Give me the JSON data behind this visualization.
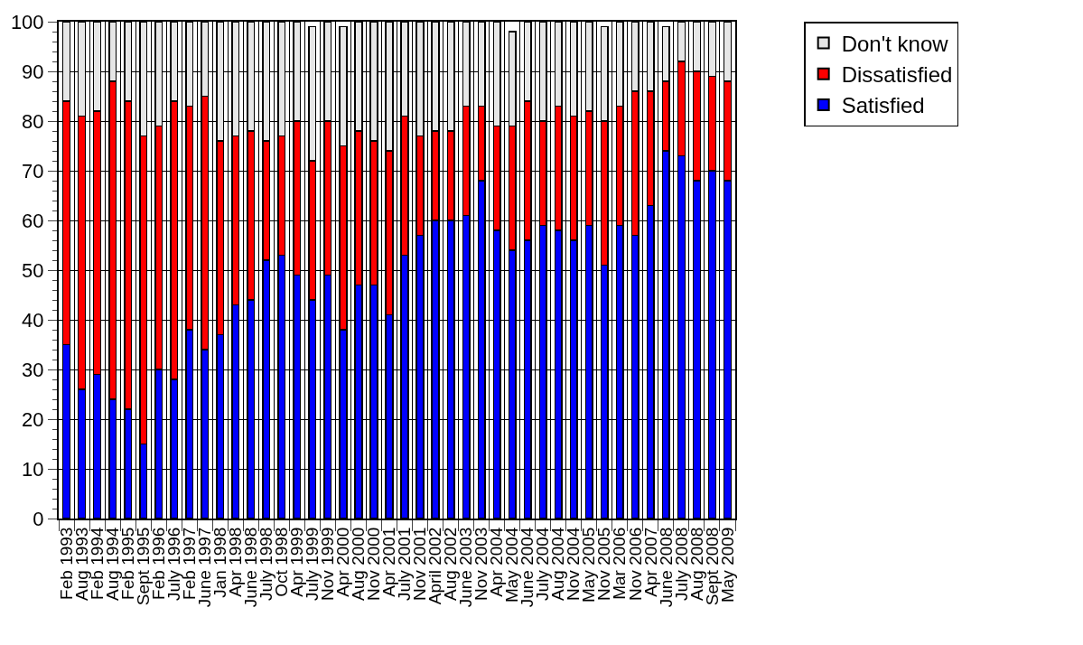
{
  "chart_data": {
    "type": "bar",
    "stacked": true,
    "categories": [
      "Feb 1993",
      "Aug 1993",
      "Feb 1994",
      "Aug 1994",
      "Feb 1995",
      "Sept 1995",
      "Feb 1996",
      "July 1996",
      "Feb 1997",
      "June 1997",
      "Jan 1998",
      "Apr 1998",
      "June 1998",
      "July 1998",
      "Oct 1998",
      "Apr 1999",
      "July 1999",
      "Nov 1999",
      "Apr 2000",
      "Aug 2000",
      "Nov 2000",
      "Apr 2001",
      "July 2001",
      "Nov 2001",
      "April 2002",
      "Aug 2002",
      "June 2003",
      "Nov 2003",
      "Apr 2004",
      "May 2004",
      "June 2004",
      "July 2004",
      "Aug 2004",
      "Nov 2004",
      "May 2005",
      "Nov 2005",
      "Mar 2006",
      "Nov 2006",
      "Apr 2007",
      "June 2008",
      "July 2008",
      "Aug 2008",
      "Sept 2008",
      "May 2009"
    ],
    "series": [
      {
        "name": "Satisfied",
        "color": "#0000ff",
        "values": [
          35,
          26,
          29,
          24,
          22,
          15,
          30,
          28,
          38,
          34,
          37,
          43,
          44,
          52,
          53,
          49,
          44,
          49,
          38,
          47,
          47,
          41,
          53,
          57,
          60,
          60,
          61,
          68,
          58,
          54,
          56,
          59,
          58,
          56,
          59,
          51,
          59,
          57,
          63,
          74,
          73,
          68,
          70,
          68
        ]
      },
      {
        "name": "Dissatisfied",
        "color": "#ff0000",
        "values": [
          49,
          55,
          53,
          64,
          62,
          62,
          49,
          56,
          45,
          51,
          39,
          34,
          34,
          24,
          24,
          31,
          28,
          31,
          37,
          31,
          29,
          33,
          28,
          20,
          18,
          18,
          22,
          15,
          21,
          25,
          28,
          21,
          25,
          25,
          23,
          29,
          24,
          29,
          23,
          14,
          19,
          22,
          19,
          20
        ]
      },
      {
        "name": "Don't know",
        "color": "#e6e6e6",
        "values": [
          16,
          19,
          18,
          12,
          16,
          23,
          21,
          16,
          17,
          15,
          24,
          23,
          22,
          24,
          23,
          20,
          27,
          20,
          24,
          22,
          24,
          26,
          19,
          23,
          22,
          22,
          17,
          17,
          21,
          19,
          16,
          20,
          17,
          19,
          18,
          19,
          17,
          14,
          14,
          11,
          8,
          10,
          11,
          12
        ]
      }
    ],
    "ylim": [
      0,
      100
    ],
    "yticks": [
      0,
      10,
      20,
      30,
      40,
      50,
      60,
      70,
      80,
      90,
      100
    ],
    "grid": true,
    "legend": "top right"
  }
}
